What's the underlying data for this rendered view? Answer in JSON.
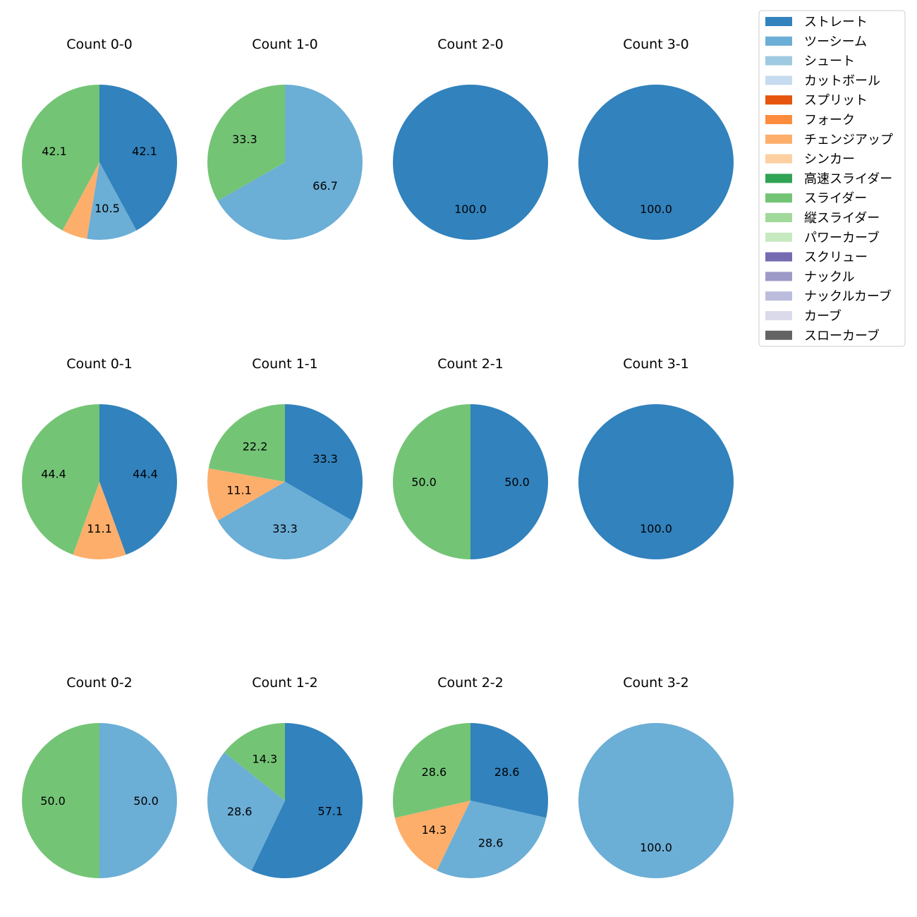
{
  "legend": {
    "items": [
      {
        "name": "ストレート",
        "color": "#3182bd"
      },
      {
        "name": "ツーシーム",
        "color": "#6baed6"
      },
      {
        "name": "シュート",
        "color": "#9ecae1"
      },
      {
        "name": "カットボール",
        "color": "#c6dbef"
      },
      {
        "name": "スプリット",
        "color": "#e6550d"
      },
      {
        "name": "フォーク",
        "color": "#fd8d3c"
      },
      {
        "name": "チェンジアップ",
        "color": "#fdae6b"
      },
      {
        "name": "シンカー",
        "color": "#fdd0a2"
      },
      {
        "name": "高速スライダー",
        "color": "#31a354"
      },
      {
        "name": "スライダー",
        "color": "#74c476"
      },
      {
        "name": "縦スライダー",
        "color": "#a1d99b"
      },
      {
        "name": "パワーカーブ",
        "color": "#c7e9c0"
      },
      {
        "name": "スクリュー",
        "color": "#756bb1"
      },
      {
        "name": "ナックル",
        "color": "#9e9ac8"
      },
      {
        "name": "ナックルカーブ",
        "color": "#bcbddc"
      },
      {
        "name": "カーブ",
        "color": "#dadaeb"
      },
      {
        "name": "スローカーブ",
        "color": "#636363"
      }
    ]
  },
  "chart_data": [
    {
      "type": "pie",
      "title": "Count 0-0",
      "slices": [
        {
          "label": "ストレート",
          "value": 42.1,
          "text": "42.1"
        },
        {
          "label": "ツーシーム",
          "value": 10.5,
          "text": "10.5"
        },
        {
          "label": "チェンジアップ",
          "value": 5.3,
          "text": ""
        },
        {
          "label": "スライダー",
          "value": 42.1,
          "text": "42.1"
        }
      ]
    },
    {
      "type": "pie",
      "title": "Count 1-0",
      "slices": [
        {
          "label": "ツーシーム",
          "value": 66.7,
          "text": "66.7"
        },
        {
          "label": "スライダー",
          "value": 33.3,
          "text": "33.3"
        }
      ]
    },
    {
      "type": "pie",
      "title": "Count 2-0",
      "slices": [
        {
          "label": "ストレート",
          "value": 100.0,
          "text": "100.0"
        }
      ]
    },
    {
      "type": "pie",
      "title": "Count 3-0",
      "slices": [
        {
          "label": "ストレート",
          "value": 100.0,
          "text": "100.0"
        }
      ]
    },
    {
      "type": "pie",
      "title": "Count 0-1",
      "slices": [
        {
          "label": "ストレート",
          "value": 44.4,
          "text": "44.4"
        },
        {
          "label": "チェンジアップ",
          "value": 11.1,
          "text": "11.1"
        },
        {
          "label": "スライダー",
          "value": 44.4,
          "text": "44.4"
        }
      ]
    },
    {
      "type": "pie",
      "title": "Count 1-1",
      "slices": [
        {
          "label": "ストレート",
          "value": 33.3,
          "text": "33.3"
        },
        {
          "label": "ツーシーム",
          "value": 33.3,
          "text": "33.3"
        },
        {
          "label": "チェンジアップ",
          "value": 11.1,
          "text": "11.1"
        },
        {
          "label": "スライダー",
          "value": 22.2,
          "text": "22.2"
        }
      ]
    },
    {
      "type": "pie",
      "title": "Count 2-1",
      "slices": [
        {
          "label": "ストレート",
          "value": 50.0,
          "text": "50.0"
        },
        {
          "label": "スライダー",
          "value": 50.0,
          "text": "50.0"
        }
      ]
    },
    {
      "type": "pie",
      "title": "Count 3-1",
      "slices": [
        {
          "label": "ストレート",
          "value": 100.0,
          "text": "100.0"
        }
      ]
    },
    {
      "type": "pie",
      "title": "Count 0-2",
      "slices": [
        {
          "label": "ツーシーム",
          "value": 50.0,
          "text": "50.0"
        },
        {
          "label": "スライダー",
          "value": 50.0,
          "text": "50.0"
        }
      ]
    },
    {
      "type": "pie",
      "title": "Count 1-2",
      "slices": [
        {
          "label": "ストレート",
          "value": 57.1,
          "text": "57.1"
        },
        {
          "label": "ツーシーム",
          "value": 28.6,
          "text": "28.6"
        },
        {
          "label": "スライダー",
          "value": 14.3,
          "text": "14.3"
        }
      ]
    },
    {
      "type": "pie",
      "title": "Count 2-2",
      "slices": [
        {
          "label": "ストレート",
          "value": 28.6,
          "text": "28.6"
        },
        {
          "label": "ツーシーム",
          "value": 28.6,
          "text": "28.6"
        },
        {
          "label": "チェンジアップ",
          "value": 14.3,
          "text": "14.3"
        },
        {
          "label": "スライダー",
          "value": 28.6,
          "text": "28.6"
        }
      ]
    },
    {
      "type": "pie",
      "title": "Count 3-2",
      "slices": [
        {
          "label": "ツーシーム",
          "value": 100.0,
          "text": "100.0"
        }
      ]
    }
  ]
}
